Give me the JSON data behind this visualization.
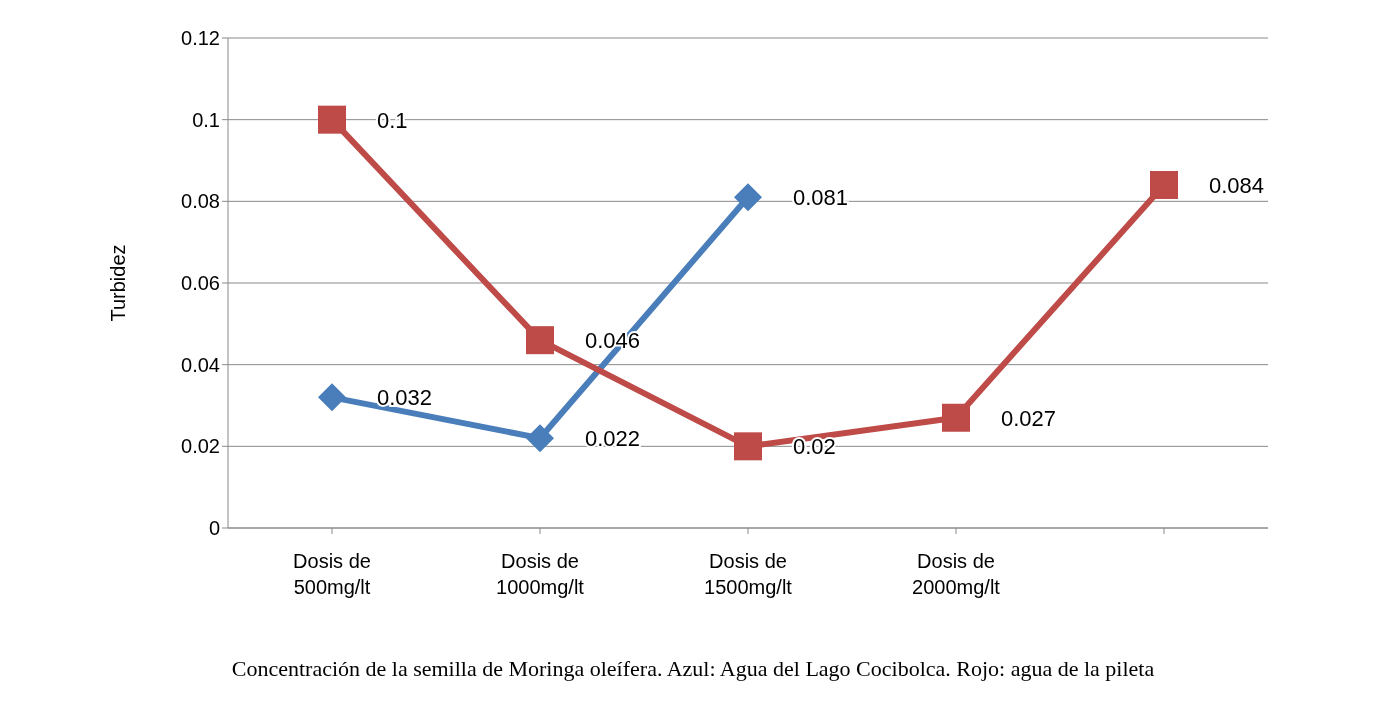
{
  "chart_data": {
    "type": "line",
    "ylabel": "Turbidez",
    "xlabel": "Concentración de la semilla de Moringa oleífera. Azul: Agua del Lago Cocibolca. Rojo: agua de la pileta",
    "categories": [
      "Dosis de 500mg/lt",
      "Dosis de 1000mg/lt",
      "Dosis de 1500mg/lt",
      "Dosis de 2000mg/lt",
      null
    ],
    "series": [
      {
        "color": "#4a7ebb",
        "marker": "diamond",
        "values": [
          0.032,
          0.022,
          0.081,
          null,
          null
        ]
      },
      {
        "color": "#be4b48",
        "marker": "square",
        "values": [
          0.1,
          0.046,
          0.02,
          0.027,
          0.084
        ]
      }
    ],
    "ylim": [
      0,
      0.12
    ],
    "yticks": [
      0,
      0.02,
      0.04,
      0.06,
      0.08,
      0.1,
      0.12
    ],
    "grid": "y",
    "legend": false,
    "data_labels": true
  }
}
